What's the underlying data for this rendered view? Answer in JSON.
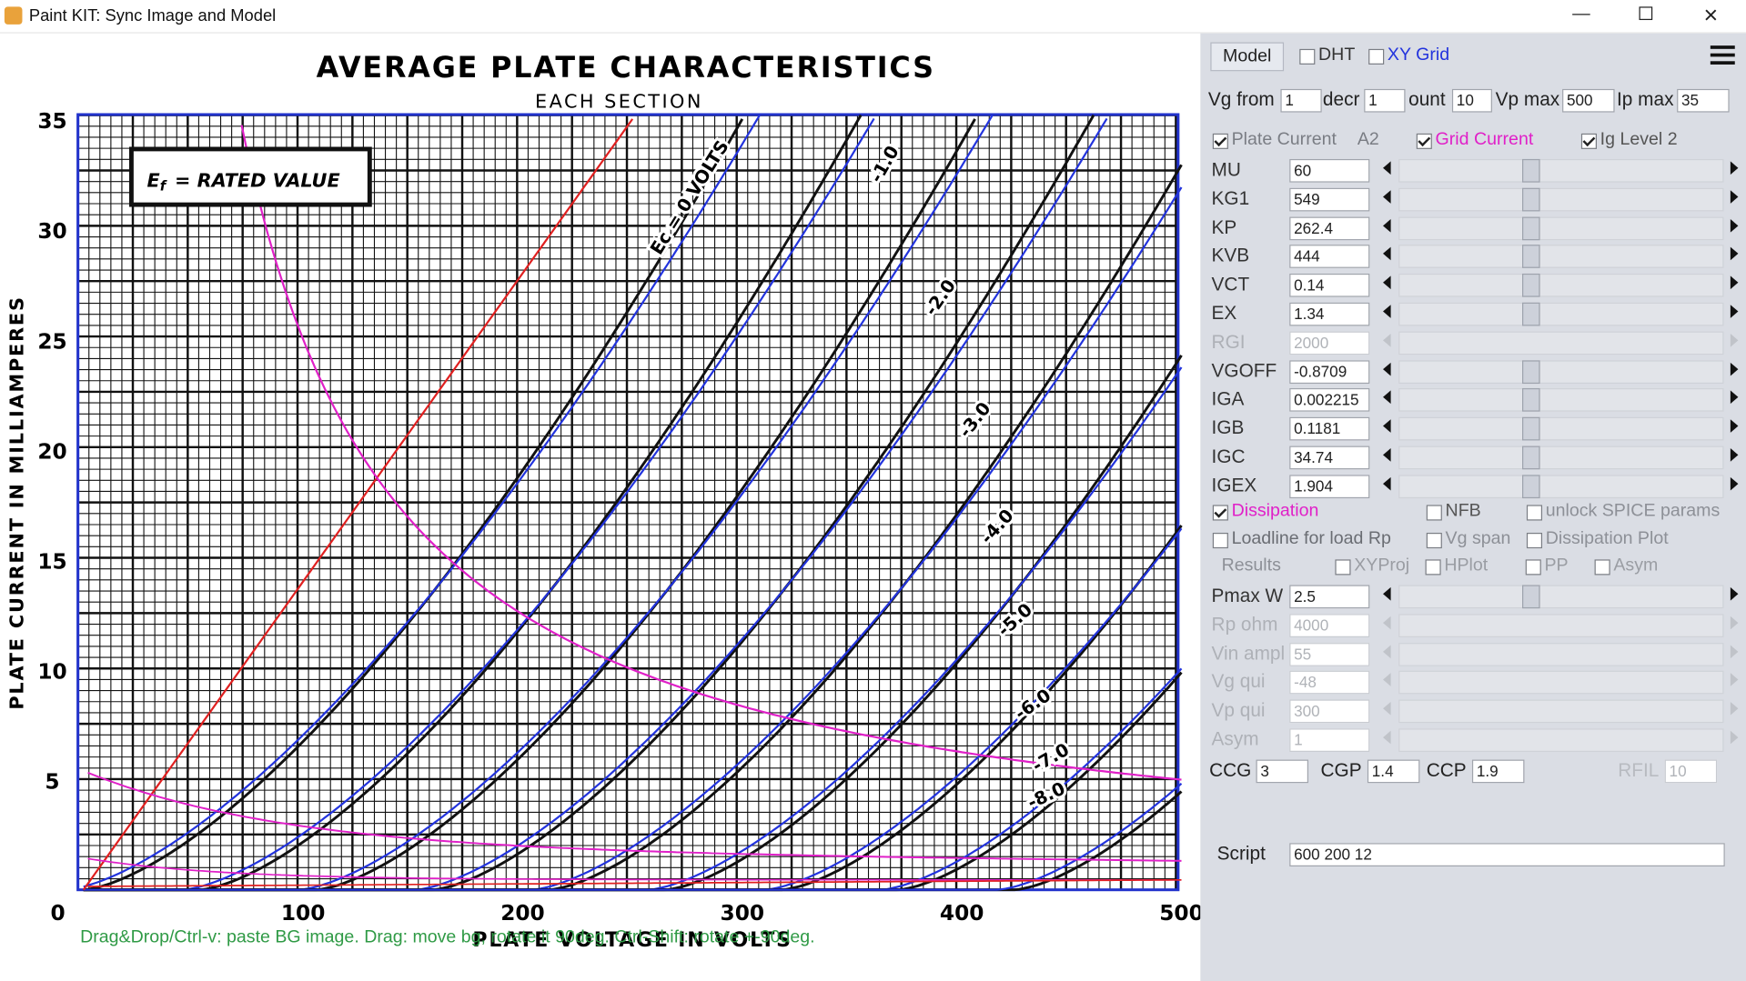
{
  "window": {
    "title": "Paint KIT: Sync Image and Model"
  },
  "plot": {
    "title": "AVERAGE PLATE CHARACTERISTICS",
    "subtitle": "EACH SECTION",
    "note": {
      "symbol": "E",
      "subscript": "f",
      "text": "= RATED VALUE"
    },
    "x_label": "PLATE VOLTAGE IN VOLTS",
    "y_label": "PLATE CURRENT IN MILLIAMPERES",
    "x_ticks": [
      100,
      200,
      300,
      400,
      500
    ],
    "y_ticks": [
      0,
      5,
      10,
      15,
      20,
      25,
      30,
      35
    ],
    "curve_labels": [
      "Ec = 0 VOLTS",
      "-1.0",
      "-2.0",
      "-3.0",
      "-4.0",
      "-5.0",
      "-6.0",
      "-7.0",
      "-8.0"
    ]
  },
  "status": "Drag&Drop/Ctrl-v: paste BG image. Drag: move bg, rotate it 90deg. Ctrl-Shift: rotate +-90deg.",
  "toolbar": {
    "button": "Model",
    "checkboxes": [
      {
        "label": "DHT",
        "checked": false
      },
      {
        "label": "XY Grid",
        "checked": false
      }
    ]
  },
  "range_row": [
    {
      "label": "Vg from",
      "value": 1
    },
    {
      "label": "decr",
      "value": 1
    },
    {
      "label": "ount",
      "value": 10
    },
    {
      "label": "Vp max",
      "value": 500
    },
    {
      "label": "Ip max",
      "value": 35
    }
  ],
  "current_row": {
    "plate_current": {
      "label": "Plate Current",
      "checked": true
    },
    "tag": "A2",
    "grid_current": {
      "label": "Grid Current",
      "checked": true
    },
    "ig_level": {
      "label": "Ig Level 2",
      "checked": true
    }
  },
  "params": [
    {
      "name": "MU",
      "value": 60,
      "enabled": true
    },
    {
      "name": "KG1",
      "value": 549,
      "enabled": true
    },
    {
      "name": "KP",
      "value": 262.4,
      "enabled": true
    },
    {
      "name": "KVB",
      "value": 444,
      "enabled": true
    },
    {
      "name": "VCT",
      "value": 0.14,
      "enabled": true
    },
    {
      "name": "EX",
      "value": 1.34,
      "enabled": true
    },
    {
      "name": "RGI",
      "value": 2000,
      "enabled": false
    },
    {
      "name": "VGOFF",
      "value": -0.8709,
      "enabled": true
    },
    {
      "name": "IGA",
      "value": 0.002215,
      "enabled": true
    },
    {
      "name": "IGB",
      "value": 0.1181,
      "enabled": true
    },
    {
      "name": "IGC",
      "value": 34.74,
      "enabled": true
    },
    {
      "name": "IGEX",
      "value": 1.904,
      "enabled": true
    }
  ],
  "options": [
    [
      {
        "label": "Dissipation",
        "checked": true
      },
      {
        "label": "NFB",
        "checked": false
      },
      {
        "label": "unlock SPICE params",
        "checked": false
      }
    ],
    [
      {
        "label": "Loadline for load Rp",
        "checked": false
      },
      {
        "label": "Vg span",
        "checked": false
      },
      {
        "label": "Dissipation Plot",
        "checked": false
      }
    ]
  ],
  "results": {
    "label": "Results",
    "checkboxes": [
      {
        "label": "XYProj",
        "checked": false
      },
      {
        "label": "HPlot",
        "checked": false
      },
      {
        "label": "PP",
        "checked": false
      },
      {
        "label": "Asym",
        "checked": false
      }
    ]
  },
  "params2": [
    {
      "name": "Pmax W",
      "value": 2.5,
      "enabled": true
    },
    {
      "name": "Rp ohm",
      "value": 4000,
      "enabled": false
    },
    {
      "name": "Vin ampl",
      "value": 55,
      "enabled": false
    },
    {
      "name": "Vg qui",
      "value": -48,
      "enabled": false
    },
    {
      "name": "Vp qui",
      "value": 300,
      "enabled": false
    },
    {
      "name": "Asym",
      "value": 1,
      "enabled": false
    }
  ],
  "caps": [
    {
      "label": "CCG",
      "value": 3,
      "enabled": true
    },
    {
      "label": "CGP",
      "value": 1.4,
      "enabled": true
    },
    {
      "label": "CCP",
      "value": 1.9,
      "enabled": true
    },
    {
      "label": "RFIL",
      "value": 10,
      "enabled": false
    }
  ],
  "script": {
    "label": "Script",
    "value": "600 200 12"
  }
}
